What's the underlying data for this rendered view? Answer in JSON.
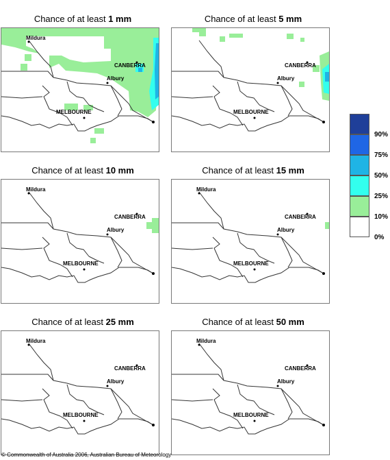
{
  "panels": [
    {
      "prefix": "Chance of at least ",
      "amount": "1 mm"
    },
    {
      "prefix": "Chance of at least ",
      "amount": "5 mm"
    },
    {
      "prefix": "Chance of at least ",
      "amount": "10 mm"
    },
    {
      "prefix": "Chance of at least ",
      "amount": "15 mm"
    },
    {
      "prefix": "Chance of at least ",
      "amount": "25 mm"
    },
    {
      "prefix": "Chance of at least ",
      "amount": "50 mm"
    }
  ],
  "places": {
    "mildura": "Mildura",
    "canberra": "CANBERRA",
    "albury": "Albury",
    "melbourne": "MELBOURNE"
  },
  "legend": {
    "labels": [
      "90%",
      "75%",
      "50%",
      "25%",
      "10%",
      "0%"
    ],
    "colors": [
      "#1f3f99",
      "#1f66e5",
      "#1fb4e5",
      "#33ffee",
      "#99ee99",
      "#ffffff"
    ]
  },
  "copyright": "© Commonwealth of Australia 2006, Australian Bureau of Meteorology"
}
